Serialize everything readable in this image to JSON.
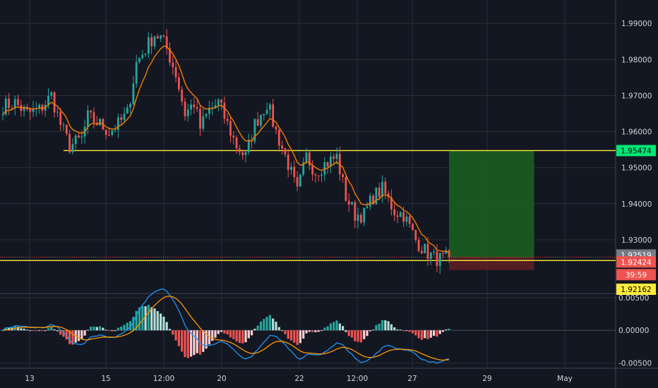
{
  "colors": {
    "background": "#131722",
    "grid": "#2a2e39",
    "axis_text": "#d1d4dc",
    "candle_up": "#26a69a",
    "candle_down": "#ef5350",
    "ema": "#f57c00",
    "level_line": "#ffeb3b",
    "target_zone": "#1b5e20",
    "stop_zone": "#5c1f24",
    "macd_line": "#2196f3",
    "signal_line": "#ff9800",
    "hist_up": "#26a69a",
    "hist_up_light": "#b2dfdb",
    "hist_down": "#ef5350",
    "hist_down_light": "#ffcdd2"
  },
  "chart_data": [
    {
      "type": "candlestick",
      "panel": "price",
      "x_ticks": [
        "13",
        "15",
        "12:00",
        "20",
        "22",
        "12:00",
        "27",
        "29",
        "May"
      ],
      "y_ticks": [
        "1.99000",
        "1.98000",
        "1.97000",
        "1.96000",
        "1.95000",
        "1.94000",
        "1.93000"
      ],
      "ylim": [
        1.9155,
        1.9965
      ],
      "close_path": [
        [
          0,
          1.967
        ],
        [
          4,
          1.968
        ],
        [
          8,
          1.965
        ],
        [
          12,
          1.966
        ],
        [
          16,
          1.97
        ],
        [
          19,
          1.962
        ],
        [
          22,
          1.956
        ],
        [
          26,
          1.958
        ],
        [
          28,
          1.964
        ],
        [
          32,
          1.962
        ],
        [
          35,
          1.96
        ],
        [
          38,
          1.962
        ],
        [
          41,
          1.965
        ],
        [
          44,
          1.979
        ],
        [
          47,
          1.983
        ],
        [
          50,
          1.987
        ],
        [
          52,
          1.986
        ],
        [
          54,
          1.983
        ],
        [
          57,
          1.976
        ],
        [
          60,
          1.965
        ],
        [
          63,
          1.968
        ],
        [
          65,
          1.961
        ],
        [
          68,
          1.966
        ],
        [
          71,
          1.968
        ],
        [
          74,
          1.962
        ],
        [
          77,
          1.956
        ],
        [
          80,
          1.953
        ],
        [
          83,
          1.962
        ],
        [
          87,
          1.968
        ],
        [
          90,
          1.96
        ],
        [
          94,
          1.951
        ],
        [
          97,
          1.943
        ],
        [
          100,
          1.953
        ],
        [
          103,
          1.949
        ],
        [
          106,
          1.951
        ],
        [
          110,
          1.953
        ],
        [
          113,
          1.942
        ],
        [
          116,
          1.937
        ],
        [
          119,
          1.937
        ],
        [
          122,
          1.942
        ],
        [
          125,
          1.944
        ],
        [
          129,
          1.938
        ],
        [
          132,
          1.937
        ],
        [
          136,
          1.93
        ],
        [
          139,
          1.927
        ],
        [
          142,
          1.925
        ],
        [
          145,
          1.9245
        ],
        [
          147,
          1.9252
        ]
      ],
      "ema_label": "EMA",
      "support_level": 1.92424,
      "resistance_level": 1.95474,
      "support_line_start": 20,
      "resistance_line_start": 20,
      "position": {
        "entry": 1.92519,
        "target": 1.95474,
        "stop": 1.92162,
        "start_index": 147,
        "end_index": 175
      }
    },
    {
      "type": "macd",
      "panel": "indicator",
      "y_ticks": [
        "0.00500",
        "0.00000",
        "-0.00500"
      ],
      "ylim": [
        -0.0058,
        0.0052
      ]
    }
  ],
  "price_labels": {
    "target": {
      "text": "1.95474",
      "value": 1.95474,
      "bg": "#00e676",
      "fg": "#000000"
    },
    "last": {
      "text": "1.92519",
      "value": 1.92519,
      "bg": "#787b86",
      "fg": "#ffffff"
    },
    "support": {
      "text": "1.92424",
      "value": 1.92424,
      "bg": "#ef5350",
      "fg": "#ffffff"
    },
    "countdown": {
      "text": "39:59",
      "bg": "#ef5350",
      "fg": "#ffffff"
    },
    "stop": {
      "text": "1.92162",
      "value": 1.92162,
      "bg": "#ffeb3b",
      "fg": "#000000"
    }
  }
}
